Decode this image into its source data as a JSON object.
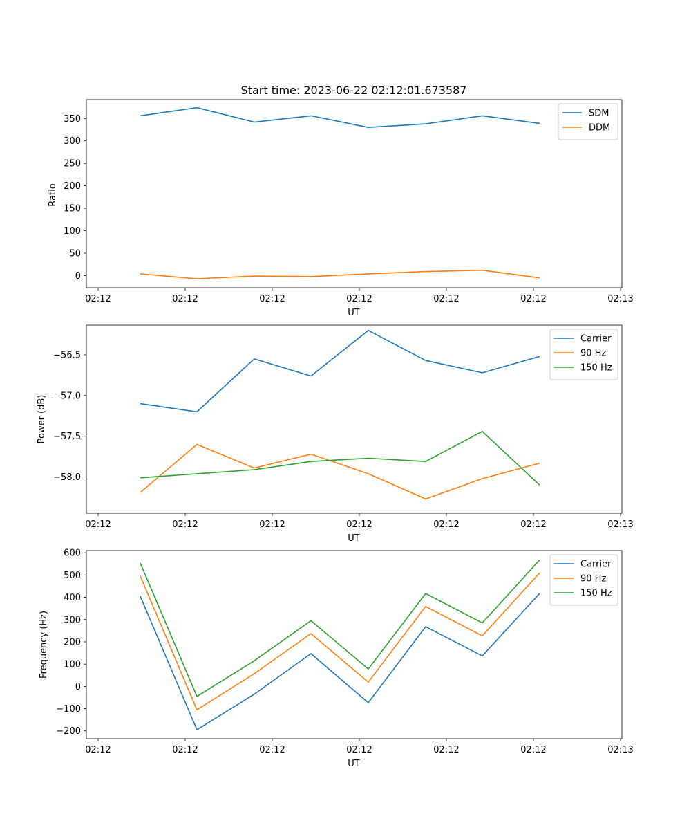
{
  "chart_data": [
    {
      "type": "line",
      "title": "Start time: 2023-06-22 02:12:01.673587",
      "xlabel": "UT",
      "ylabel": "Ratio",
      "xtick_labels": [
        "02:12",
        "02:12",
        "02:12",
        "02:12",
        "02:12",
        "02:12",
        "02:12",
        "02:13"
      ],
      "yticks": [
        0,
        50,
        100,
        150,
        200,
        250,
        300,
        350
      ],
      "ylim": [
        -27,
        392
      ],
      "legend_position": "upper right",
      "series": [
        {
          "name": "SDM",
          "color": "#1f77b4",
          "values": [
            356,
            374,
            342,
            356,
            330,
            338,
            356,
            339
          ]
        },
        {
          "name": "DDM",
          "color": "#ff7f0e",
          "values": [
            4,
            -7,
            -1,
            -2,
            4,
            9,
            12,
            -5
          ]
        }
      ]
    },
    {
      "type": "line",
      "title": "",
      "xlabel": "UT",
      "ylabel": "Power (dB)",
      "xtick_labels": [
        "02:12",
        "02:12",
        "02:12",
        "02:12",
        "02:12",
        "02:12",
        "02:12",
        "02:13"
      ],
      "yticks": [
        -58.0,
        -57.5,
        -57.0,
        -56.5
      ],
      "ytick_labels": [
        "−58.0",
        "−57.5",
        "−57.0",
        "−56.5"
      ],
      "ylim": [
        -58.445,
        -56.135
      ],
      "legend_position": "upper right",
      "series": [
        {
          "name": "Carrier",
          "color": "#1f77b4",
          "values": [
            -57.1,
            -57.2,
            -56.55,
            -56.76,
            -56.2,
            -56.57,
            -56.72,
            -56.52
          ]
        },
        {
          "name": "90 Hz",
          "color": "#ff7f0e",
          "values": [
            -58.19,
            -57.6,
            -57.89,
            -57.72,
            -57.96,
            -58.27,
            -58.02,
            -57.83
          ]
        },
        {
          "name": "150 Hz",
          "color": "#2ca02c",
          "values": [
            -58.01,
            -57.96,
            -57.91,
            -57.81,
            -57.77,
            -57.81,
            -57.44,
            -58.1
          ]
        }
      ]
    },
    {
      "type": "line",
      "title": "",
      "xlabel": "UT",
      "ylabel": "Frequency (Hz)",
      "xtick_labels": [
        "02:12",
        "02:12",
        "02:12",
        "02:12",
        "02:12",
        "02:12",
        "02:12",
        "02:13"
      ],
      "yticks": [
        -200,
        -100,
        0,
        100,
        200,
        300,
        400,
        500,
        600
      ],
      "ytick_labels": [
        "−200",
        "−100",
        "0",
        "100",
        "200",
        "300",
        "400",
        "500",
        "600"
      ],
      "ylim": [
        -235,
        610
      ],
      "legend_position": "upper right",
      "series": [
        {
          "name": "Carrier",
          "color": "#1f77b4",
          "values": [
            405,
            -195,
            -35,
            147,
            -73,
            268,
            137,
            418
          ]
        },
        {
          "name": "90 Hz",
          "color": "#ff7f0e",
          "values": [
            496,
            -105,
            57,
            237,
            19,
            359,
            227,
            510
          ]
        },
        {
          "name": "150 Hz",
          "color": "#2ca02c",
          "values": [
            554,
            -45,
            115,
            295,
            78,
            417,
            285,
            568
          ]
        }
      ]
    }
  ]
}
